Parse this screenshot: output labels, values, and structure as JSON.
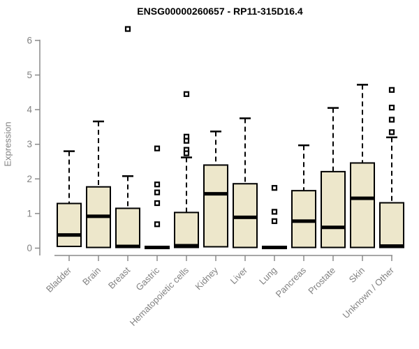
{
  "title": "ENSG00000260657 - RP11-315D16.4",
  "chart_data": {
    "type": "boxplot",
    "title": "ENSG00000260657 - RP11-315D16.4",
    "ylabel": "Expression",
    "xlabel": "",
    "ylim": [
      0,
      6
    ],
    "yticks": [
      0,
      1,
      2,
      3,
      4,
      5,
      6
    ],
    "grid": false,
    "legend": "none",
    "colors": {
      "box_fill": "#ede7cb",
      "box_border": "#000000",
      "median": "#000000",
      "whisker": "#000000",
      "axis": "#8a8a8a",
      "tick_label": "#828282",
      "title": "#000000"
    },
    "categories": [
      "Bladder",
      "Brain",
      "Breast",
      "Gastric",
      "Hematopoietic cells",
      "Kidney",
      "Liver",
      "Lung",
      "Pancreas",
      "Prostate",
      "Skin",
      "Unknown / Other"
    ],
    "series": [
      {
        "category": "Bladder",
        "whisker_low": 0,
        "q1": 0.05,
        "median": 0.38,
        "q3": 1.29,
        "whisker_high": 2.8,
        "outliers": []
      },
      {
        "category": "Brain",
        "whisker_low": 0,
        "q1": 0.02,
        "median": 0.92,
        "q3": 1.77,
        "whisker_high": 3.66,
        "outliers": []
      },
      {
        "category": "Breast",
        "whisker_low": 0,
        "q1": 0.02,
        "median": 0.05,
        "q3": 1.15,
        "whisker_high": 2.08,
        "outliers": [
          6.33
        ]
      },
      {
        "category": "Gastric",
        "whisker_low": 0,
        "q1": 0.0,
        "median": 0.02,
        "q3": 0.04,
        "whisker_high": 0.04,
        "outliers": [
          2.88,
          1.84,
          1.61,
          1.3,
          0.69
        ]
      },
      {
        "category": "Hematopoietic cells",
        "whisker_low": 0,
        "q1": 0.02,
        "median": 0.07,
        "q3": 1.03,
        "whisker_high": 2.62,
        "outliers": [
          4.45,
          3.22,
          3.1,
          2.84,
          2.74
        ]
      },
      {
        "category": "Kidney",
        "whisker_low": 0,
        "q1": 0.04,
        "median": 1.57,
        "q3": 2.4,
        "whisker_high": 3.37,
        "outliers": []
      },
      {
        "category": "Liver",
        "whisker_low": 0,
        "q1": 0.02,
        "median": 0.89,
        "q3": 1.86,
        "whisker_high": 3.75,
        "outliers": []
      },
      {
        "category": "Lung",
        "whisker_low": 0,
        "q1": 0.0,
        "median": 0.02,
        "q3": 0.04,
        "whisker_high": 0.04,
        "outliers": [
          1.74,
          1.05,
          0.78
        ]
      },
      {
        "category": "Pancreas",
        "whisker_low": 0,
        "q1": 0.02,
        "median": 0.78,
        "q3": 1.66,
        "whisker_high": 2.97,
        "outliers": []
      },
      {
        "category": "Prostate",
        "whisker_low": 0,
        "q1": 0.02,
        "median": 0.6,
        "q3": 2.21,
        "whisker_high": 4.05,
        "outliers": []
      },
      {
        "category": "Skin",
        "whisker_low": 0,
        "q1": 0.02,
        "median": 1.44,
        "q3": 2.46,
        "whisker_high": 4.72,
        "outliers": []
      },
      {
        "category": "Unknown / Other",
        "whisker_low": 0,
        "q1": 0.02,
        "median": 0.06,
        "q3": 1.31,
        "whisker_high": 3.2,
        "outliers": [
          4.57,
          4.06,
          3.71,
          3.35
        ]
      }
    ]
  }
}
